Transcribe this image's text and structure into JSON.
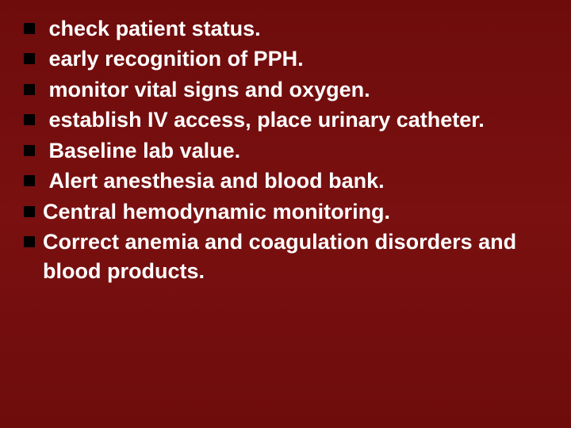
{
  "slide": {
    "background_color": "#6e0c0c",
    "text_color": "#ffffff",
    "bullet_color": "#000000",
    "font_family": "Arial",
    "font_size_pt": 20,
    "font_weight": "bold",
    "bullets": [
      {
        "text": "check patient status.",
        "leading_space": true
      },
      {
        "text": "early recognition of PPH.",
        "leading_space": true
      },
      {
        "text": "monitor vital signs and oxygen.",
        "leading_space": true
      },
      {
        "text": "establish IV access, place urinary catheter.",
        "leading_space": true
      },
      {
        "text": "Baseline lab value.",
        "leading_space": true
      },
      {
        "text": "Alert anesthesia and blood bank.",
        "leading_space": true
      },
      {
        "text": "Central hemodynamic monitoring.",
        "leading_space": false
      },
      {
        "text": "Correct anemia and coagulation disorders and blood products.",
        "leading_space": false
      }
    ]
  }
}
